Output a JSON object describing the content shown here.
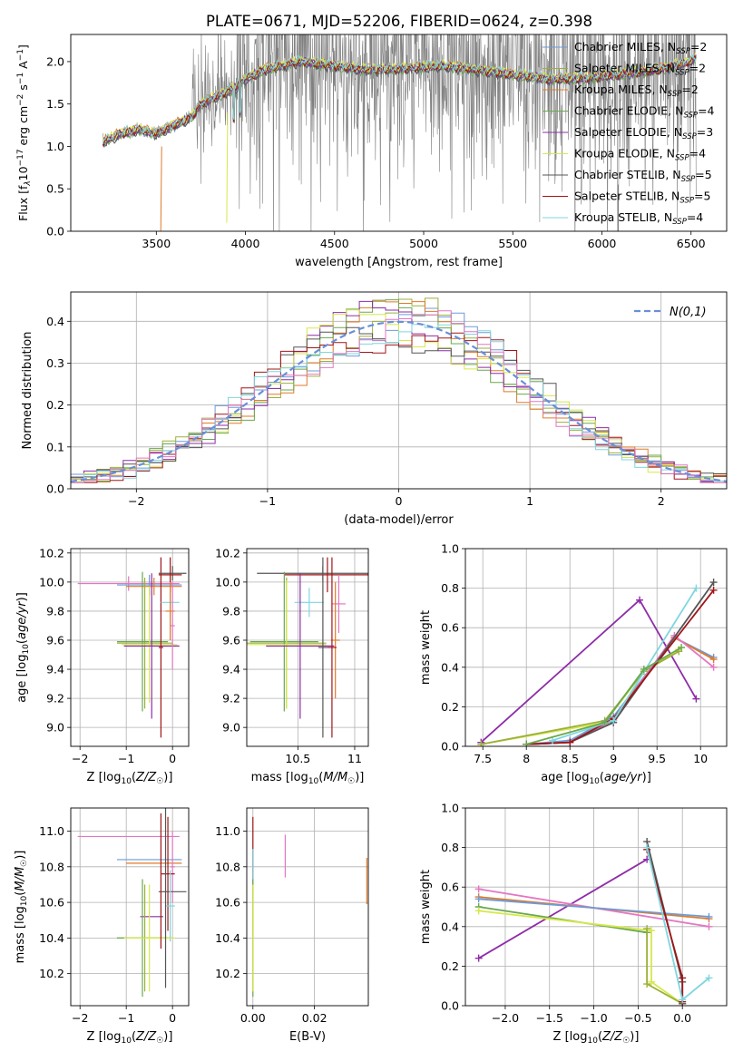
{
  "figure": {
    "title": "PLATE=0671, MJD=52206, FIBERID=0624, z=0.398"
  },
  "colors": {
    "data": "#808080",
    "ChabrierMILES": "#6c9bd8",
    "SalpeterMILES": "#9bb03c",
    "KroupaMILES": "#e07a2a",
    "ChabrierELODIE": "#6aa84f",
    "SalpeterELODIE": "#8e2ca8",
    "KroupaELODIE": "#d6e84a",
    "ChabrierSTELIB": "#555555",
    "SalpeterSTELIB": "#a0161a",
    "KroupaSTELIB": "#7fd6df",
    "pink": "#e377c2",
    "normal": "#6a8fd8"
  },
  "chart_data": [
    {
      "id": "spectrum",
      "type": "line",
      "title": "PLATE=0671, MJD=52206, FIBERID=0624, z=0.398",
      "xlabel": "wavelength [Angstrom, rest frame]",
      "ylabel": "Flux [f_λ10^-17 erg cm^-2 s^-1 A^-1]",
      "xlim": [
        3020,
        6700
      ],
      "ylim": [
        0,
        2.32
      ],
      "xticks": [
        3500,
        4000,
        4500,
        5000,
        5500,
        6000,
        6500
      ],
      "yticks": [
        0.0,
        0.5,
        1.0,
        1.5,
        2.0
      ],
      "legend_position": "top-right",
      "legend": [
        {
          "label": "Chabrier MILES, N",
          "sub": "SSP",
          "tail": "=2",
          "color": "ChabrierMILES"
        },
        {
          "label": "Salpeter MILES, N",
          "sub": "SSP",
          "tail": "=2",
          "color": "SalpeterMILES"
        },
        {
          "label": "Kroupa MILES, N",
          "sub": "SSP",
          "tail": "=2",
          "color": "KroupaMILES"
        },
        {
          "label": "Chabrier ELODIE, N",
          "sub": "SSP",
          "tail": "=4",
          "color": "ChabrierELODIE"
        },
        {
          "label": "Salpeter ELODIE, N",
          "sub": "SSP",
          "tail": "=3",
          "color": "SalpeterELODIE"
        },
        {
          "label": "Kroupa ELODIE, N",
          "sub": "SSP",
          "tail": "=4",
          "color": "KroupaELODIE"
        },
        {
          "label": "Chabrier STELIB, N",
          "sub": "SSP",
          "tail": "=5",
          "color": "ChabrierSTELIB"
        },
        {
          "label": "Salpeter STELIB, N",
          "sub": "SSP",
          "tail": "=5",
          "color": "SalpeterSTELIB"
        },
        {
          "label": "Kroupa STELIB, N",
          "sub": "SSP",
          "tail": "=4",
          "color": "KroupaSTELIB"
        }
      ],
      "continuum_knots": [
        [
          3200,
          1.05
        ],
        [
          3300,
          1.15
        ],
        [
          3400,
          1.2
        ],
        [
          3500,
          1.15
        ],
        [
          3600,
          1.25
        ],
        [
          3700,
          1.35
        ],
        [
          3750,
          1.5
        ],
        [
          3850,
          1.6
        ],
        [
          3950,
          1.7
        ],
        [
          4000,
          1.8
        ],
        [
          4100,
          1.9
        ],
        [
          4300,
          2.0
        ],
        [
          4500,
          1.95
        ],
        [
          4700,
          1.9
        ],
        [
          4900,
          1.92
        ],
        [
          5100,
          1.95
        ],
        [
          5300,
          1.9
        ],
        [
          5500,
          1.85
        ],
        [
          5700,
          1.8
        ],
        [
          5900,
          1.8
        ],
        [
          6100,
          1.85
        ],
        [
          6300,
          1.9
        ],
        [
          6500,
          2.0
        ],
        [
          6530,
          2.05
        ]
      ]
    },
    {
      "id": "residuals",
      "type": "line",
      "xlabel": "(data-model)/error",
      "ylabel": "Normed distribution",
      "xlim": [
        -2.5,
        2.5
      ],
      "ylim": [
        0,
        0.47
      ],
      "xticks": [
        -2,
        -1,
        0,
        1,
        2
      ],
      "yticks": [
        0.0,
        0.1,
        0.2,
        0.3,
        0.4
      ],
      "legend_position": "top-right",
      "normal_label": "N(0,1)",
      "bin_width": 0.1
    },
    {
      "id": "age_vs_Z",
      "type": "scatter",
      "xlabel": "Z [log10(Z/Z☉)]",
      "ylabel": "age  [log10(age/yr)]",
      "xlim": [
        -2.2,
        0.35
      ],
      "ylim": [
        8.87,
        10.23
      ],
      "xticks": [
        -2,
        -1,
        0
      ],
      "yticks": [
        9.0,
        9.2,
        9.4,
        9.6,
        9.8,
        10.0,
        10.2
      ],
      "points": [
        {
          "color": "pink",
          "x": -0.95,
          "xe": 1.1,
          "y": 9.99,
          "ye": 0.05
        },
        {
          "color": "ChabrierMILES",
          "x": -0.5,
          "xe": 0.7,
          "y": 9.98,
          "ye": 0.07
        },
        {
          "color": "KroupaMILES",
          "x": -0.4,
          "xe": 0.6,
          "y": 9.97,
          "ye": 0.06
        },
        {
          "color": "SalpeterMILES",
          "x": -0.6,
          "xe": 0.6,
          "y": 9.58,
          "ye": 0.45
        },
        {
          "color": "ChabrierELODIE",
          "x": -0.65,
          "xe": 0.55,
          "y": 9.59,
          "ye": 0.48
        },
        {
          "color": "KroupaELODIE",
          "x": -0.5,
          "xe": 0.6,
          "y": 9.57,
          "ye": 0.4
        },
        {
          "color": "SalpeterELODIE",
          "x": -0.45,
          "xe": 0.6,
          "y": 9.56,
          "ye": 0.5
        },
        {
          "color": "SalpeterSTELIB",
          "x": -0.25,
          "xe": 0.05,
          "y": 9.55,
          "ye": 0.62
        },
        {
          "color": "ChabrierSTELIB",
          "x": 0.0,
          "xe": 0.3,
          "y": 10.06,
          "ye": 0.05
        },
        {
          "color": "SalpeterSTELIB",
          "x": -0.05,
          "xe": 0.25,
          "y": 10.05,
          "ye": 0.12
        },
        {
          "color": "KroupaSTELIB",
          "x": -0.05,
          "xe": 0.2,
          "y": 9.86,
          "ye": 0.1
        },
        {
          "color": "KroupaMILES",
          "x": -0.05,
          "xe": 0.1,
          "y": 9.8,
          "ye": 0.2
        },
        {
          "color": "pink",
          "x": 0.0,
          "xe": 0.05,
          "y": 9.7,
          "ye": 0.3
        }
      ]
    },
    {
      "id": "age_vs_mass",
      "type": "scatter",
      "xlabel": "mass [log10(M/M☉)]",
      "ylabel": "",
      "xlim": [
        10.05,
        11.12
      ],
      "ylim": [
        8.87,
        10.23
      ],
      "xticks": [
        10.5,
        11.0
      ],
      "yticks": [
        9.0,
        9.2,
        9.4,
        9.6,
        9.8,
        10.0,
        10.2
      ],
      "points": [
        {
          "color": "ChabrierSTELIB",
          "x": 10.72,
          "xe": 0.58,
          "y": 10.06,
          "ye": 0.05
        },
        {
          "color": "SalpeterSTELIB",
          "x": 10.76,
          "xe": 0.38,
          "y": 10.05,
          "ye": 0.12
        },
        {
          "color": "pink",
          "x": 10.86,
          "xe": 0.06,
          "y": 9.85,
          "ye": 0.2
        },
        {
          "color": "KroupaSTELIB",
          "x": 10.6,
          "xe": 0.13,
          "y": 9.86,
          "ye": 0.1
        },
        {
          "color": "KroupaMILES",
          "x": 10.83,
          "xe": 0.04,
          "y": 9.6,
          "ye": 0.4
        },
        {
          "color": "SalpeterMILES",
          "x": 10.4,
          "xe": 0.35,
          "y": 9.58,
          "ye": 0.45
        },
        {
          "color": "ChabrierELODIE",
          "x": 10.38,
          "xe": 0.3,
          "y": 9.59,
          "ye": 0.48
        },
        {
          "color": "KroupaELODIE",
          "x": 10.4,
          "xe": 0.35,
          "y": 9.57,
          "ye": 0.44
        },
        {
          "color": "SalpeterELODIE",
          "x": 10.52,
          "xe": 0.3,
          "y": 9.56,
          "ye": 0.5
        },
        {
          "color": "ChabrierSTELIB",
          "x": 10.72,
          "xe": 0.04,
          "y": 9.55,
          "ye": 0.62
        },
        {
          "color": "SalpeterSTELIB",
          "x": 10.8,
          "xe": 0.04,
          "y": 9.55,
          "ye": 0.62
        }
      ]
    },
    {
      "id": "weight_vs_age",
      "type": "line",
      "xlabel": "age  [log10(age/yr)]",
      "ylabel": "mass weight",
      "xlim": [
        7.3,
        10.3
      ],
      "ylim": [
        0,
        1
      ],
      "xticks": [
        7.5,
        8.0,
        8.5,
        9.0,
        9.5,
        10.0
      ],
      "yticks": [
        0.0,
        0.2,
        0.4,
        0.6,
        0.8,
        1.0
      ],
      "series": [
        {
          "color": "SalpeterELODIE",
          "x": [
            7.48,
            9.3,
            9.95
          ],
          "y": [
            0.02,
            0.74,
            0.24
          ]
        },
        {
          "color": "KroupaELODIE",
          "x": [
            7.48,
            8.9,
            9.35,
            9.75
          ],
          "y": [
            0.01,
            0.12,
            0.38,
            0.49
          ]
        },
        {
          "color": "SalpeterMILES",
          "x": [
            7.48,
            8.9,
            9.35,
            9.75
          ],
          "y": [
            0.01,
            0.13,
            0.38,
            0.48
          ]
        },
        {
          "color": "ChabrierMILES",
          "x": [
            8.0,
            8.5,
            9.0,
            9.7,
            10.15
          ],
          "y": [
            0.01,
            0.03,
            0.15,
            0.55,
            0.45
          ]
        },
        {
          "color": "KroupaMILES",
          "x": [
            8.0,
            8.5,
            9.0,
            9.7,
            10.15
          ],
          "y": [
            0.01,
            0.02,
            0.14,
            0.55,
            0.44
          ]
        },
        {
          "color": "pink",
          "x": [
            8.0,
            8.5,
            9.0,
            9.7,
            10.15
          ],
          "y": [
            0.01,
            0.02,
            0.13,
            0.56,
            0.4
          ]
        },
        {
          "color": "ChabrierSTELIB",
          "x": [
            8.0,
            8.5,
            9.0,
            10.15
          ],
          "y": [
            0.01,
            0.02,
            0.12,
            0.83
          ]
        },
        {
          "color": "SalpeterSTELIB",
          "x": [
            8.0,
            8.5,
            9.0,
            10.15
          ],
          "y": [
            0.01,
            0.02,
            0.14,
            0.79
          ]
        },
        {
          "color": "KroupaSTELIB",
          "x": [
            8.3,
            9.0,
            9.95
          ],
          "y": [
            0.03,
            0.13,
            0.8
          ]
        },
        {
          "color": "ChabrierELODIE",
          "x": [
            8.0,
            8.9,
            9.35,
            9.78
          ],
          "y": [
            0.01,
            0.12,
            0.39,
            0.5
          ]
        }
      ]
    },
    {
      "id": "mass_vs_Z",
      "type": "scatter",
      "xlabel": "Z [log10(Z/Z☉)]",
      "ylabel": "mass [log10(M/M☉)]",
      "xlim": [
        -2.2,
        0.35
      ],
      "ylim": [
        10.02,
        11.13
      ],
      "xticks": [
        -2,
        -1,
        0
      ],
      "yticks": [
        10.2,
        10.4,
        10.6,
        10.8,
        11.0
      ],
      "points": [
        {
          "color": "pink",
          "x": -0.95,
          "xe": 1.1,
          "y": 10.97,
          "ye": 0.0
        },
        {
          "color": "ChabrierMILES",
          "x": -0.5,
          "xe": 0.7,
          "y": 10.84,
          "ye": 0.0
        },
        {
          "color": "KroupaMILES",
          "x": -0.4,
          "xe": 0.6,
          "y": 10.82,
          "ye": 0.0
        },
        {
          "color": "pink",
          "x": 0.0,
          "xe": 0.05,
          "y": 10.8,
          "ye": 0.2
        },
        {
          "color": "SalpeterSTELIB",
          "x": -0.1,
          "xe": 0.15,
          "y": 10.76,
          "ye": 0.32
        },
        {
          "color": "ChabrierSTELIB",
          "x": 0.0,
          "xe": 0.3,
          "y": 10.66,
          "ye": 0.0
        },
        {
          "color": "KroupaSTELIB",
          "x": -0.05,
          "xe": 0.1,
          "y": 10.58,
          "ye": 0.2
        },
        {
          "color": "SalpeterELODIE",
          "x": -0.45,
          "xe": 0.25,
          "y": 10.52,
          "ye": 0.0
        },
        {
          "color": "SalpeterMILES",
          "x": -0.6,
          "xe": 0.6,
          "y": 10.4,
          "ye": 0.3
        },
        {
          "color": "ChabrierELODIE",
          "x": -0.65,
          "xe": 0.55,
          "y": 10.4,
          "ye": 0.33
        },
        {
          "color": "KroupaELODIE",
          "x": -0.5,
          "xe": 0.55,
          "y": 10.4,
          "ye": 0.3
        },
        {
          "color": "SalpeterSTELIB",
          "x": -0.25,
          "xe": 0.0,
          "y": 10.72,
          "ye": 0.38
        },
        {
          "color": "ChabrierSTELIB",
          "x": -0.15,
          "xe": 0.0,
          "y": 10.7,
          "ye": 0.58
        }
      ]
    },
    {
      "id": "mass_vs_ebv",
      "type": "scatter",
      "xlabel": "E(B-V)",
      "ylabel": "",
      "xlim": [
        -0.002,
        0.0375
      ],
      "ylim": [
        10.02,
        11.13
      ],
      "xticks": [
        0.0,
        0.02
      ],
      "xtick_labels": [
        "0.00",
        "0.02"
      ],
      "yticks": [
        10.2,
        10.4,
        10.6,
        10.8,
        11.0
      ],
      "points": [
        {
          "color": "SalpeterSTELIB",
          "x": 0.0,
          "xe": 0.0,
          "y": 10.76,
          "ye": 0.32
        },
        {
          "color": "KroupaSTELIB",
          "x": 0.0,
          "xe": 0.0,
          "y": 10.6,
          "ye": 0.3
        },
        {
          "color": "SalpeterMILES",
          "x": 0.0,
          "xe": 0.0,
          "y": 10.4,
          "ye": 0.3
        },
        {
          "color": "ChabrierELODIE",
          "x": 0.0,
          "xe": 0.0,
          "y": 10.4,
          "ye": 0.33
        },
        {
          "color": "KroupaELODIE",
          "x": 0.0,
          "xe": 0.0,
          "y": 10.4,
          "ye": 0.3
        },
        {
          "color": "pink",
          "x": 0.0105,
          "xe": 0.0,
          "y": 10.86,
          "ye": 0.12
        },
        {
          "color": "KroupaMILES",
          "x": 0.037,
          "xe": 0.0,
          "y": 10.72,
          "ye": 0.13
        }
      ]
    },
    {
      "id": "weight_vs_Z",
      "type": "line",
      "xlabel": "Z [log10(Z/Z☉)]",
      "ylabel": "mass weight",
      "xlim": [
        -2.45,
        0.5
      ],
      "ylim": [
        0,
        1
      ],
      "xticks": [
        -2.0,
        -1.5,
        -1.0,
        -0.5,
        0.0
      ],
      "xtick_labels": [
        "−2.0",
        "−1.5",
        "−1.0",
        "−0.5",
        "0.0"
      ],
      "yticks": [
        0.0,
        0.2,
        0.4,
        0.6,
        0.8,
        1.0
      ],
      "series": [
        {
          "color": "SalpeterELODIE",
          "x": [
            -2.3,
            -0.4
          ],
          "y": [
            0.24,
            0.74
          ]
        },
        {
          "color": "pink",
          "x": [
            -2.3,
            0.3
          ],
          "y": [
            0.59,
            0.4
          ]
        },
        {
          "color": "KroupaMILES",
          "x": [
            -2.3,
            0.3
          ],
          "y": [
            0.55,
            0.44
          ]
        },
        {
          "color": "ChabrierMILES",
          "x": [
            -2.3,
            0.3
          ],
          "y": [
            0.54,
            0.45
          ]
        },
        {
          "color": "ChabrierELODIE",
          "x": [
            -2.3,
            -0.4
          ],
          "y": [
            0.5,
            0.37
          ]
        },
        {
          "color": "KroupaELODIE",
          "x": [
            -2.3,
            -0.35,
            -0.35,
            0.0
          ],
          "y": [
            0.48,
            0.38,
            0.12,
            0.01
          ]
        },
        {
          "color": "SalpeterMILES",
          "x": [
            -0.4,
            -0.4,
            0.0
          ],
          "y": [
            0.39,
            0.11,
            0.01
          ]
        },
        {
          "color": "ChabrierSTELIB",
          "x": [
            -0.4,
            0.0,
            0.0
          ],
          "y": [
            0.83,
            0.12,
            0.01
          ]
        },
        {
          "color": "SalpeterSTELIB",
          "x": [
            -0.4,
            0.0,
            0.0
          ],
          "y": [
            0.79,
            0.14,
            0.02
          ]
        },
        {
          "color": "KroupaSTELIB",
          "x": [
            -0.4,
            0.0,
            0.3
          ],
          "y": [
            0.8,
            0.03,
            0.14
          ]
        }
      ]
    }
  ]
}
